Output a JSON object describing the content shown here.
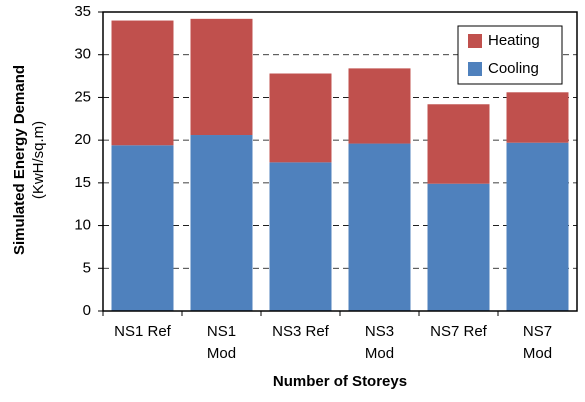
{
  "chart_data": {
    "type": "stacked_bar",
    "y_label": "Simulated Energy Demand",
    "y_label_unit": "(KwH/sq.m)",
    "x_label": "Number of Storeys",
    "categories": [
      "NS1 Ref",
      "NS1\nMod",
      "NS3 Ref",
      "NS3\nMod",
      "NS7 Ref",
      "NS7\nMod"
    ],
    "series": [
      {
        "name": "Cooling",
        "color": "#4f81bd",
        "values": [
          19.4,
          20.6,
          17.4,
          19.6,
          14.9,
          19.7
        ]
      },
      {
        "name": "Heating",
        "color": "#c0504d",
        "values": [
          14.6,
          13.6,
          10.4,
          8.8,
          9.3,
          5.9
        ]
      }
    ],
    "ylim": [
      0,
      35
    ],
    "yticks": [
      0,
      5,
      10,
      15,
      20,
      25,
      30,
      35
    ],
    "grid": true,
    "legend": "top-right"
  }
}
